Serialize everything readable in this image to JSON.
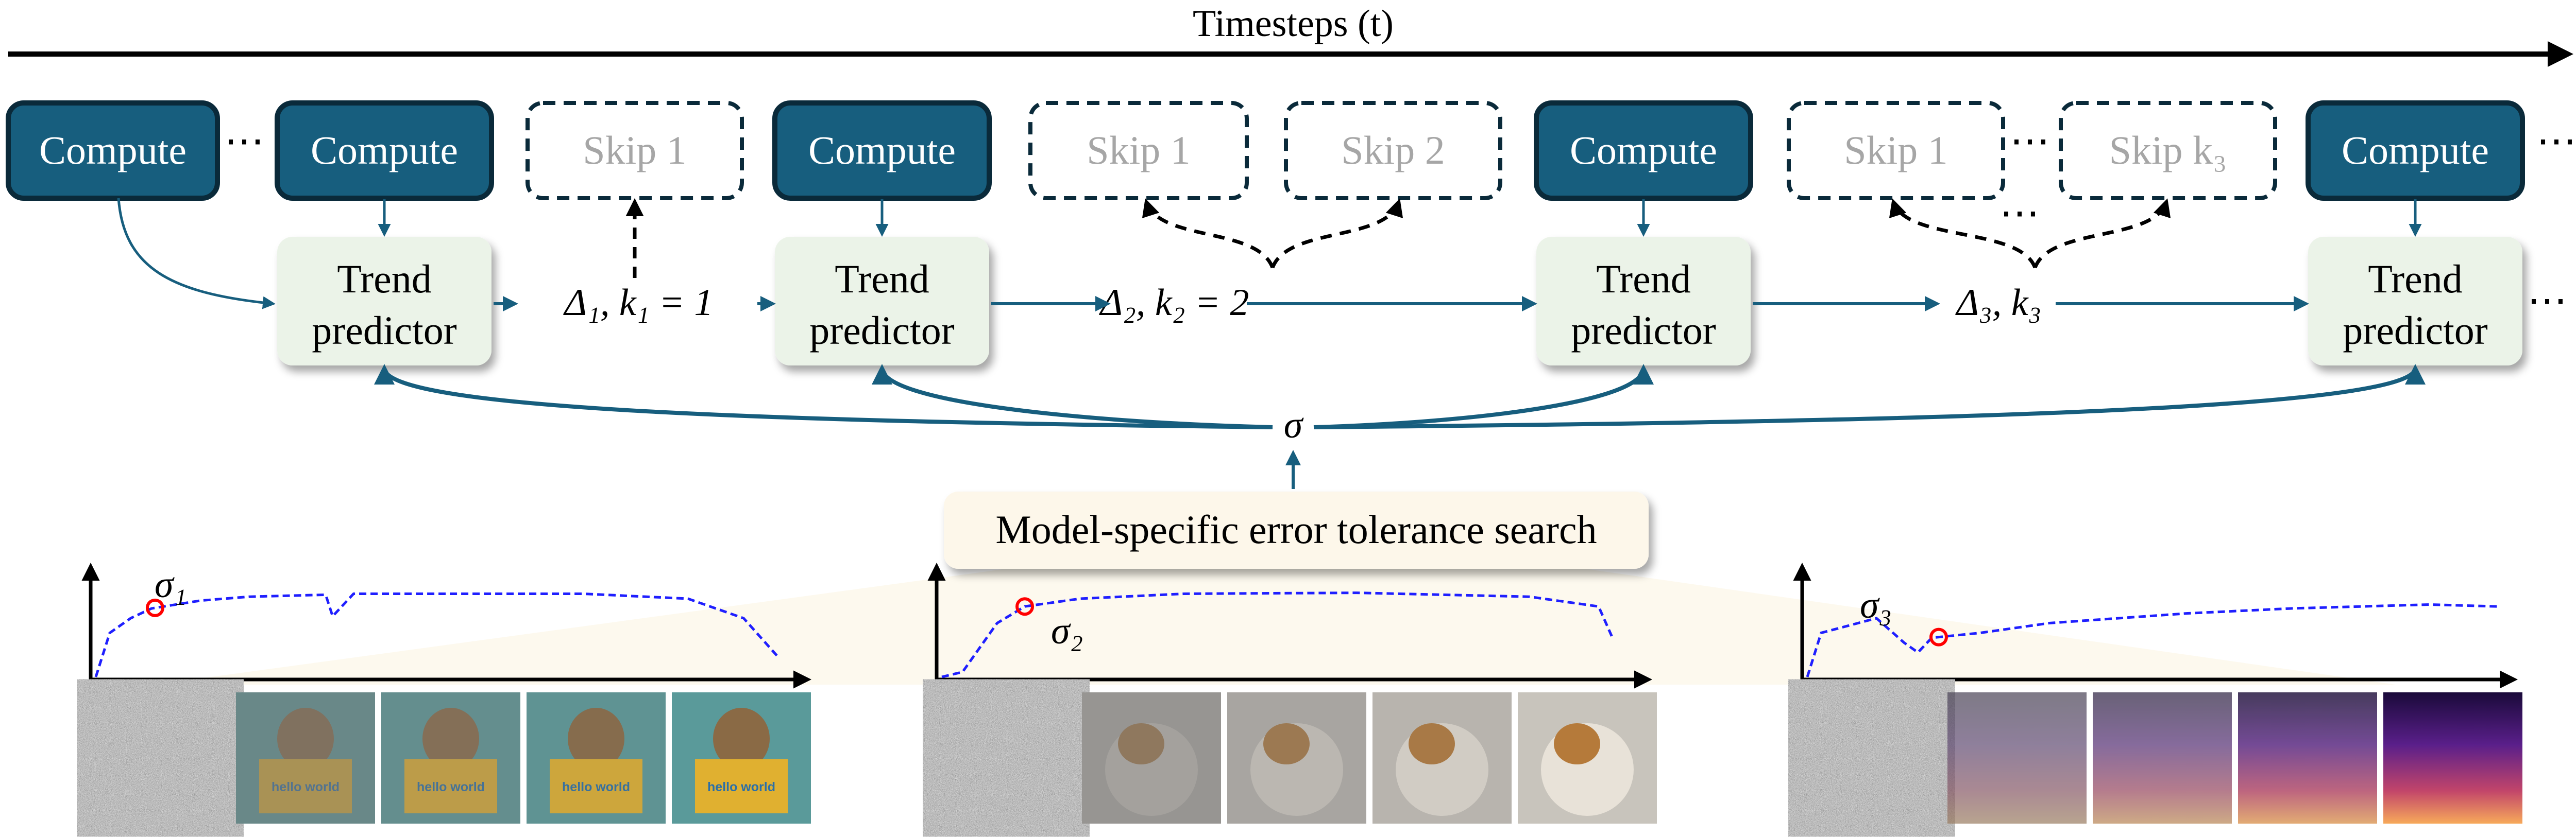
{
  "header": {
    "title": "Timesteps (t)"
  },
  "colors": {
    "compute_fill": "#175e7e",
    "compute_border": "#0a2a3a",
    "trend_fill": "#ebf3e8",
    "arrow": "#175e7e",
    "search_fill": "#fdf7ea",
    "curve": "#1f1fff",
    "marker": "#ff0000"
  },
  "compute_boxes": [
    {
      "label": "Compute"
    },
    {
      "label": "Compute"
    },
    {
      "label": "Compute"
    },
    {
      "label": "Compute"
    },
    {
      "label": "Compute"
    }
  ],
  "skip_boxes": [
    {
      "label": "Skip 1"
    },
    {
      "label": "Skip 1"
    },
    {
      "label": "Skip 2"
    },
    {
      "label": "Skip 1"
    },
    {
      "label": "Skip k₃"
    }
  ],
  "trend_predictors": [
    {
      "line1": "Trend",
      "line2": "predictor"
    },
    {
      "line1": "Trend",
      "line2": "predictor"
    },
    {
      "line1": "Trend",
      "line2": "predictor"
    },
    {
      "line1": "Trend",
      "line2": "predictor"
    }
  ],
  "intervals": [
    "Δ₁, k₁ = 1",
    "Δ₂, k₂ = 2",
    "Δ₃, k₃"
  ],
  "ellipsis": "⋯",
  "sigma": "σ",
  "search_box": {
    "label": "Model-specific error tolerance search"
  },
  "panels": [
    {
      "marker_label": "σ₁",
      "content": "text-to-image (cat holding 'hello world' sign)",
      "sign_text": "hello world"
    },
    {
      "marker_label": "σ₂",
      "content": "text-to-video (dog frames)"
    },
    {
      "marker_label": "σ₃",
      "content": "text-to-audio (spectrograms)"
    }
  ]
}
